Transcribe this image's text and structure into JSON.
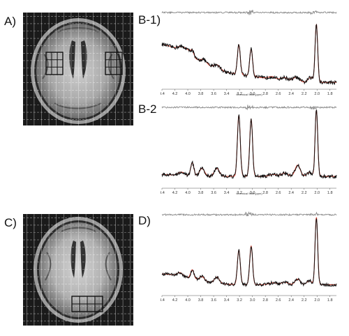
{
  "panels": {
    "a": {
      "label": "A)"
    },
    "b1": {
      "label": "B-1)"
    },
    "b2": {
      "label": "B-2"
    },
    "c": {
      "label": "C)"
    },
    "d": {
      "label": "D)"
    }
  },
  "spectrum_axis": {
    "ticks": [
      "4.4",
      "4.2",
      "4.0",
      "3.8",
      "3.6",
      "3.4",
      "3.2",
      "3.0",
      "2.8",
      "2.6",
      "2.4",
      "2.2",
      "2.0",
      "1.8"
    ],
    "title": "Chemical Shift (ppm)"
  },
  "colors": {
    "measured_spectrum": "#111111",
    "fit_curve": "#d23a2a",
    "residual": "#8a8a8a",
    "mri_grid": "#ffffff",
    "voxel_box": "#111111"
  }
}
